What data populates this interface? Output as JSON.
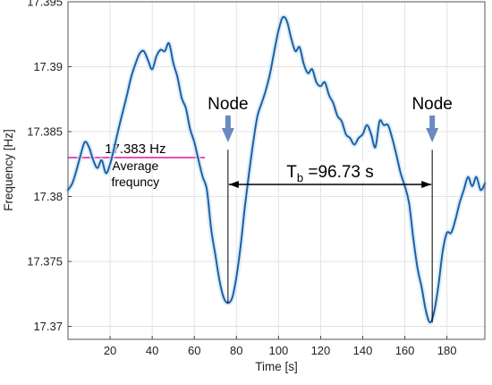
{
  "chart_data": {
    "type": "line",
    "title": "",
    "xlabel": "Time [s]",
    "ylabel": "Frequency [Hz]",
    "xlim": [
      0,
      198
    ],
    "ylim": [
      17.369,
      17.395
    ],
    "grid": true,
    "xticks": [
      20,
      40,
      60,
      80,
      100,
      120,
      140,
      160,
      180
    ],
    "yticks": [
      17.37,
      17.375,
      17.38,
      17.385,
      17.39,
      17.395
    ],
    "ytick_labels": [
      "17.37",
      "17.375",
      "17.38",
      "17.385",
      "17.39",
      "17.395"
    ],
    "series": [
      {
        "color": "#1f5fa6",
        "x": [
          0,
          2,
          4,
          6,
          8,
          10,
          12,
          14,
          16,
          18,
          20,
          22,
          24,
          26,
          28,
          30,
          32,
          34,
          36,
          38,
          40,
          42,
          44,
          46,
          48,
          50,
          52,
          54,
          56,
          58,
          60,
          62,
          64,
          66,
          68,
          70,
          72,
          74,
          76,
          78,
          80,
          82,
          84,
          86,
          88,
          90,
          92,
          94,
          96,
          98,
          100,
          102,
          104,
          106,
          108,
          110,
          112,
          114,
          116,
          118,
          120,
          122,
          124,
          126,
          128,
          130,
          132,
          134,
          136,
          138,
          140,
          142,
          144,
          146,
          148,
          150,
          152,
          154,
          156,
          158,
          160,
          162,
          164,
          166,
          168,
          170,
          172,
          174,
          176,
          178,
          180,
          182,
          184,
          186,
          188,
          190,
          192,
          194,
          196,
          198
        ],
        "y": [
          17.3805,
          17.381,
          17.382,
          17.3832,
          17.3842,
          17.3838,
          17.3828,
          17.3822,
          17.3828,
          17.3818,
          17.3825,
          17.3838,
          17.3852,
          17.3865,
          17.3878,
          17.3892,
          17.3902,
          17.391,
          17.3912,
          17.3905,
          17.3898,
          17.3908,
          17.3913,
          17.3912,
          17.3918,
          17.3903,
          17.3892,
          17.3876,
          17.3868,
          17.3852,
          17.3842,
          17.3828,
          17.3815,
          17.3805,
          17.3775,
          17.3755,
          17.3735,
          17.3722,
          17.3718,
          17.3722,
          17.3738,
          17.3762,
          17.3792,
          17.3818,
          17.3842,
          17.3862,
          17.3872,
          17.3882,
          17.3895,
          17.3912,
          17.3928,
          17.3938,
          17.3935,
          17.3922,
          17.3912,
          17.3915,
          17.3902,
          17.3895,
          17.3898,
          17.3888,
          17.3885,
          17.3888,
          17.3878,
          17.3872,
          17.3862,
          17.3858,
          17.3848,
          17.3845,
          17.384,
          17.3845,
          17.3848,
          17.3855,
          17.3848,
          17.3838,
          17.3858,
          17.3855,
          17.3855,
          17.3845,
          17.3832,
          17.3818,
          17.3808,
          17.3795,
          17.3768,
          17.3745,
          17.373,
          17.3712,
          17.3703,
          17.3712,
          17.3732,
          17.3758,
          17.3772,
          17.3772,
          17.3782,
          17.3795,
          17.3805,
          17.3815,
          17.3808,
          17.3815,
          17.3805,
          17.381
        ]
      }
    ],
    "annotations": {
      "avg_value_label": "17.383 Hz",
      "avg_text_line1": "Average",
      "avg_text_line2": "frequncy",
      "avg_y": 17.383,
      "avg_x_range": [
        0,
        65
      ],
      "avg_color": "#e0169f",
      "node_label": "Node",
      "node_left_x": 76,
      "node_right_x": 173,
      "tb_prefix": "T",
      "tb_subscript": "b",
      "tb_value": " =96.73 s",
      "arrow_color": "#6a8bc0"
    }
  }
}
